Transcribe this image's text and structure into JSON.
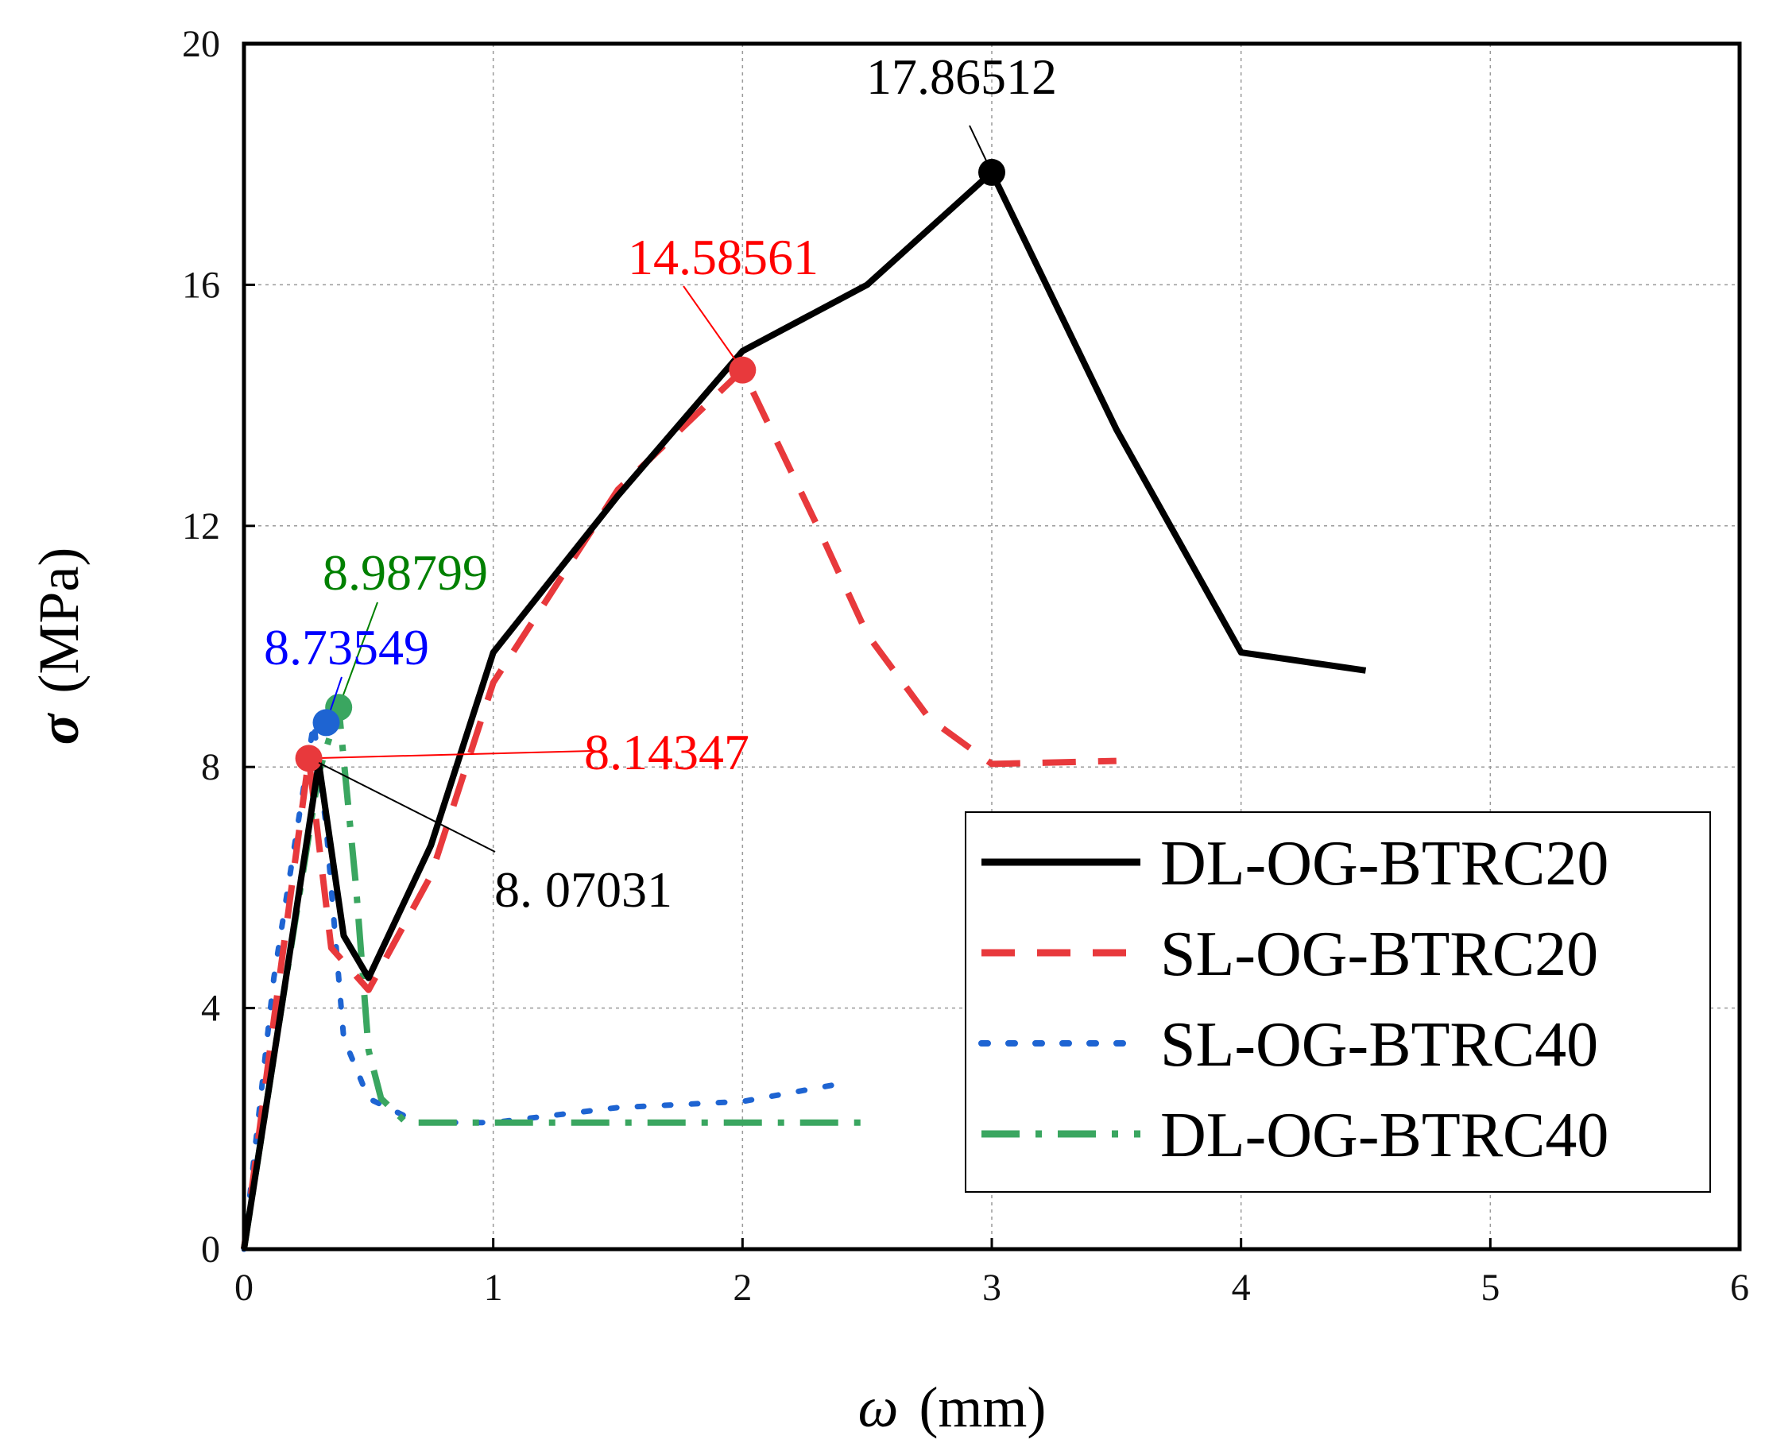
{
  "chart_data": {
    "type": "line",
    "title": "",
    "xlabel_symbol": "ω",
    "xlabel_unit": "(mm)",
    "ylabel_symbol": "σ",
    "ylabel_unit": "(MPa)",
    "xlim": [
      0,
      6
    ],
    "ylim": [
      0,
      20
    ],
    "x_ticks": [
      0,
      1,
      2,
      3,
      4,
      5,
      6
    ],
    "y_ticks": [
      0,
      4,
      8,
      12,
      16,
      20
    ],
    "grid": true,
    "legend_position": "bottom-right",
    "series": [
      {
        "name": "DL-OG-BTRC20",
        "color": "#000000",
        "style": "solid",
        "x": [
          0,
          0.15,
          0.3,
          0.4,
          0.5,
          0.75,
          1.0,
          1.5,
          2.0,
          2.5,
          3.0,
          3.5,
          4.0,
          4.5
        ],
        "y": [
          0,
          4.0,
          8.07031,
          5.2,
          4.5,
          6.7,
          9.9,
          12.5,
          14.9,
          16.0,
          17.86512,
          13.6,
          9.9,
          9.6
        ]
      },
      {
        "name": "SL-OG-BTRC20",
        "color": "#e8393c",
        "style": "dashed",
        "x": [
          0,
          0.12,
          0.26,
          0.35,
          0.5,
          0.75,
          1.0,
          1.5,
          2.0,
          2.3,
          2.5,
          2.75,
          3.0,
          3.5
        ],
        "y": [
          0,
          3.8,
          8.14347,
          5.0,
          4.3,
          6.2,
          9.4,
          12.6,
          14.58561,
          12.0,
          10.2,
          8.8,
          8.05,
          8.1
        ]
      },
      {
        "name": "SL-OG-BTRC40",
        "color": "#1e64d2",
        "style": "dotted",
        "x": [
          0,
          0.12,
          0.28,
          0.33,
          0.4,
          0.5,
          0.7,
          1.0,
          1.5,
          2.0,
          2.4
        ],
        "y": [
          0,
          4.5,
          8.73549,
          7.0,
          3.5,
          2.5,
          2.1,
          2.1,
          2.35,
          2.45,
          2.75
        ]
      },
      {
        "name": "DL-OG-BTRC40",
        "color": "#3aa660",
        "style": "dashdot",
        "x": [
          0,
          0.15,
          0.3,
          0.38,
          0.45,
          0.5,
          0.55,
          0.65,
          1.0,
          1.5,
          2.0,
          2.5
        ],
        "y": [
          0,
          4.0,
          7.9,
          8.98799,
          6.0,
          3.3,
          2.5,
          2.1,
          2.1,
          2.1,
          2.1,
          2.1
        ]
      }
    ],
    "annotations": [
      {
        "text": "17.86512",
        "x": 3.0,
        "y": 17.86512,
        "color": "#000000",
        "marker_color": "#000000"
      },
      {
        "text": "14.58561",
        "x": 2.0,
        "y": 14.58561,
        "color": "#ff0000",
        "marker_color": "#e8393c"
      },
      {
        "text": "8.98799",
        "x": 0.38,
        "y": 8.98799,
        "color": "#008000",
        "marker_color": "#3aa660"
      },
      {
        "text": "8.73549",
        "x": 0.33,
        "y": 8.73549,
        "color": "#0000ff",
        "marker_color": "#1e64d2"
      },
      {
        "text": "8.14347",
        "x": 0.26,
        "y": 8.14347,
        "color": "#ff0000",
        "marker_color": "#e8393c"
      },
      {
        "text": "8. 07031",
        "x": 0.3,
        "y": 8.07031,
        "color": "#000000",
        "marker_color": null
      }
    ]
  }
}
